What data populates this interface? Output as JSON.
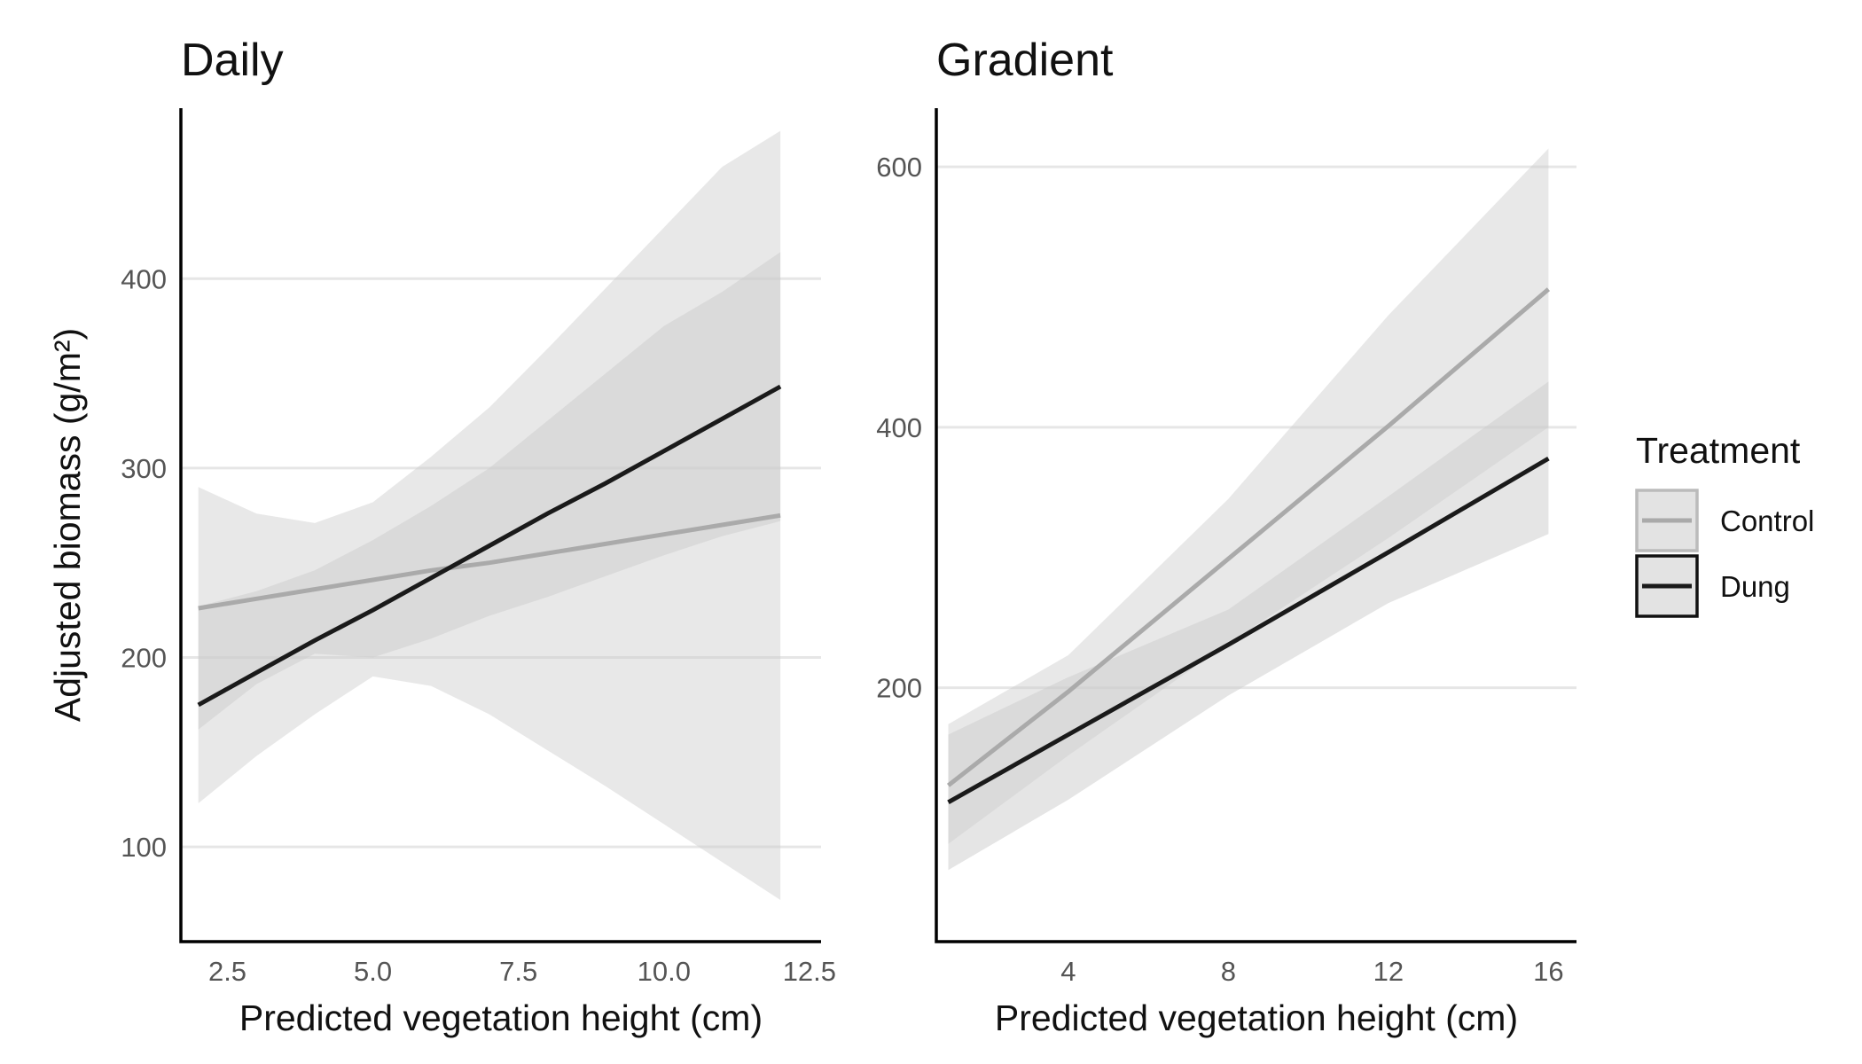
{
  "colors": {
    "control": "#aaaaaa",
    "dung": "#1a1a1a",
    "band": "#cccccc",
    "legend_key_fill": "#e3e3e3",
    "legend_key_border_control": "#bbbbbb",
    "legend_key_border_dung": "#111111"
  },
  "legend": {
    "title": "Treatment",
    "placement": "right",
    "entries": [
      {
        "label": "Control",
        "series": "Control"
      },
      {
        "label": "Dung",
        "series": "Dung"
      }
    ]
  },
  "chart_data": [
    {
      "type": "line",
      "title": "Daily",
      "xlabel": "Predicted vegetation height (cm)",
      "ylabel": "Adjusted biomass (g/m²)",
      "xlim": [
        1.7,
        12.7
      ],
      "ylim": [
        50,
        490
      ],
      "xticks": [
        2.5,
        5.0,
        7.5,
        10.0,
        12.5
      ],
      "xtick_labels": [
        "2.5",
        "5.0",
        "7.5",
        "10.0",
        "12.5"
      ],
      "yticks": [
        100,
        200,
        300,
        400
      ],
      "ytick_labels": [
        "100",
        "200",
        "300",
        "400"
      ],
      "grid": "horizontal-major",
      "series": [
        {
          "name": "Control",
          "x": [
            2,
            3,
            4,
            5,
            6,
            7,
            8,
            9,
            10,
            11,
            12
          ],
          "y": [
            226,
            231,
            236,
            241,
            246,
            250,
            255,
            260,
            265,
            270,
            275
          ],
          "lower": [
            123,
            148,
            170,
            190,
            185,
            170,
            151,
            132,
            112,
            92,
            72
          ],
          "upper": [
            290,
            276,
            271,
            282,
            306,
            332,
            363,
            395,
            427,
            459,
            478
          ]
        },
        {
          "name": "Dung",
          "x": [
            2,
            3,
            4,
            5,
            6,
            7,
            8,
            9,
            10,
            11,
            12
          ],
          "y": [
            175,
            192,
            209,
            225,
            242,
            259,
            276,
            292,
            309,
            326,
            343
          ],
          "lower": [
            162,
            186,
            202,
            200,
            210,
            222,
            232,
            243,
            254,
            264,
            272
          ],
          "upper": [
            227,
            235,
            246,
            262,
            280,
            300,
            325,
            350,
            375,
            393,
            414
          ]
        }
      ]
    },
    {
      "type": "line",
      "title": "Gradient",
      "xlabel": "Predicted vegetation height (cm)",
      "ylabel": "",
      "xlim": [
        0.7,
        16.7
      ],
      "ylim": [
        5,
        645
      ],
      "xticks": [
        4,
        8,
        12,
        16
      ],
      "xtick_labels": [
        "4",
        "8",
        "12",
        "16"
      ],
      "yticks": [
        200,
        400,
        600
      ],
      "ytick_labels": [
        "200",
        "400",
        "600"
      ],
      "grid": "horizontal-major",
      "series": [
        {
          "name": "Control",
          "x": [
            1,
            4,
            8,
            12,
            16
          ],
          "y": [
            125,
            197,
            299,
            401,
            506
          ],
          "lower": [
            80,
            148,
            234,
            315,
            400
          ],
          "upper": [
            172,
            225,
            345,
            486,
            614
          ]
        },
        {
          "name": "Dung",
          "x": [
            1,
            4,
            8,
            12,
            16
          ],
          "y": [
            112,
            164,
            233,
            304,
            376
          ],
          "lower": [
            60,
            114,
            194,
            265,
            318
          ],
          "upper": [
            164,
            208,
            260,
            347,
            435
          ]
        }
      ]
    }
  ]
}
